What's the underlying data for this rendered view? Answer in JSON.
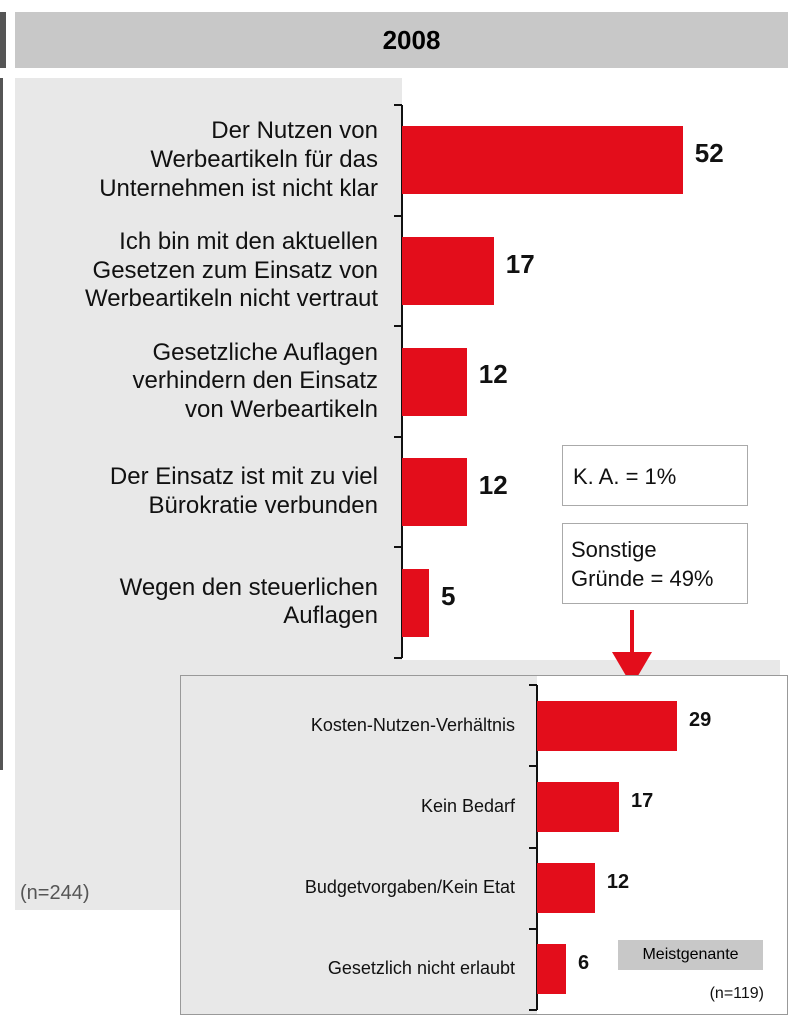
{
  "chart_data": [
    {
      "type": "bar",
      "orientation": "horizontal",
      "title": "2008",
      "categories": [
        "Der Nutzen von\nWerbeartikeln für das\nUnternehmen ist nicht klar",
        "Ich bin mit den aktuellen\nGesetzen zum Einsatz von\nWerbeartikeln nicht vertraut",
        "Gesetzliche Auflagen\nverhindern den Einsatz\nvon Werbeartikeln",
        "Der Einsatz ist mit zu viel\nBürokratie verbunden",
        "Wegen den steuerlichen\nAuflagen"
      ],
      "values": [
        52,
        17,
        12,
        12,
        5
      ],
      "color": "#e30d1b",
      "xlim": [
        0,
        70
      ],
      "annotations": [
        "K. A.  = 1%",
        "Sonstige\nGründe = 49%",
        "(n=244)"
      ]
    },
    {
      "type": "bar",
      "orientation": "horizontal",
      "categories": [
        "Kosten-Nutzen-Verhältnis",
        "Kein Bedarf",
        "Budgetvorgaben/Kein Etat",
        "Gesetzlich nicht erlaubt"
      ],
      "values": [
        29,
        17,
        12,
        6
      ],
      "color": "#e30d1b",
      "xlim": [
        0,
        52
      ],
      "annotations": [
        "Meistgenante",
        "(n=119)"
      ]
    }
  ]
}
